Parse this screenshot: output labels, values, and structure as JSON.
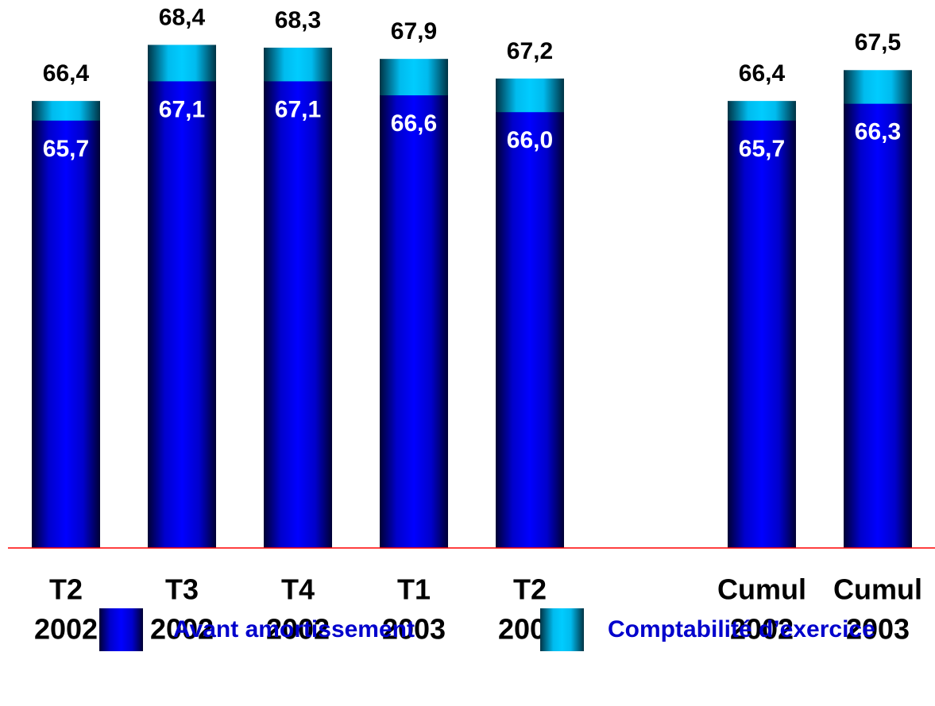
{
  "chart_data": {
    "type": "overlap-bar",
    "categories": [
      [
        "T2",
        "2002"
      ],
      [
        "T3",
        "2002"
      ],
      [
        "T4",
        "2002"
      ],
      [
        "T1",
        "2003"
      ],
      [
        "T2",
        "2003"
      ],
      null,
      [
        "Cumul",
        "2002"
      ],
      [
        "Cumul",
        "2003"
      ]
    ],
    "series": [
      {
        "name": "Comptabilité d’exercice",
        "color": "#00ccff",
        "values": [
          66.4,
          68.4,
          68.3,
          67.9,
          67.2,
          null,
          66.4,
          67.5
        ],
        "value_labels": [
          "66,4",
          "68,4",
          "68,3",
          "67,9",
          "67,2",
          null,
          "66,4",
          "67,5"
        ]
      },
      {
        "name": "Avant amortissement",
        "color": "#0000ff",
        "values": [
          65.7,
          67.1,
          67.1,
          66.6,
          66.0,
          null,
          65.7,
          66.3
        ],
        "value_labels": [
          "65,7",
          "67,1",
          "67,1",
          "66,6",
          "66,0",
          null,
          "65,7",
          "66,3"
        ]
      }
    ],
    "ylim": [
      50.46,
      70
    ],
    "baseline_color": "#ff0000"
  }
}
